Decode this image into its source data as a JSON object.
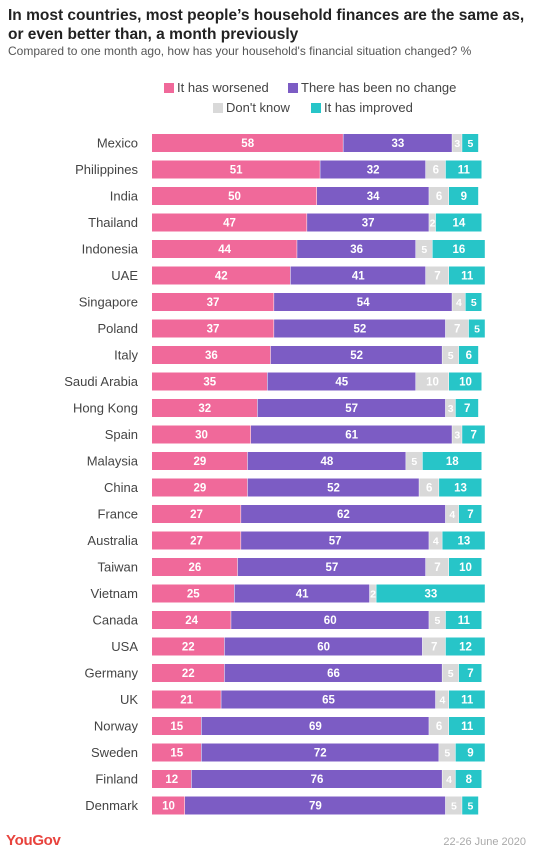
{
  "header": {
    "title": "In most countries, most people’s household finances are the same as, or even better than, a month previously",
    "subtitle": "Compared to one month ago, how has your household's financial situation changed? %"
  },
  "legend": {
    "items": [
      {
        "label": "It has worsened",
        "color": "#f0699a",
        "icon": "pink-square-icon"
      },
      {
        "label": "There has been no change",
        "color": "#7c5cc4",
        "icon": "purple-square-icon"
      },
      {
        "label": "Don't know",
        "color": "#d9d9d9",
        "icon": "grey-square-icon"
      },
      {
        "label": "It has improved",
        "color": "#27c5c8",
        "icon": "teal-square-icon"
      }
    ]
  },
  "chart_data": {
    "type": "bar",
    "orientation": "horizontal",
    "stacked": true,
    "categories": [
      "Mexico",
      "Philippines",
      "India",
      "Thailand",
      "Indonesia",
      "UAE",
      "Singapore",
      "Poland",
      "Italy",
      "Saudi Arabia",
      "Hong Kong",
      "Spain",
      "Malaysia",
      "China",
      "France",
      "Australia",
      "Taiwan",
      "Vietnam",
      "Canada",
      "USA",
      "Germany",
      "UK",
      "Norway",
      "Sweden",
      "Finland",
      "Denmark"
    ],
    "series": [
      {
        "name": "It has worsened",
        "color": "#f0699a",
        "values": [
          58,
          51,
          50,
          47,
          44,
          42,
          37,
          37,
          36,
          35,
          32,
          30,
          29,
          29,
          27,
          27,
          26,
          25,
          24,
          22,
          22,
          21,
          15,
          15,
          12,
          10
        ]
      },
      {
        "name": "There has been no change",
        "color": "#7c5cc4",
        "values": [
          33,
          32,
          34,
          37,
          36,
          41,
          54,
          52,
          52,
          45,
          57,
          61,
          48,
          52,
          62,
          57,
          57,
          41,
          60,
          60,
          66,
          65,
          69,
          72,
          76,
          79
        ]
      },
      {
        "name": "Don't know",
        "color": "#d9d9d9",
        "values": [
          3,
          6,
          6,
          2,
          5,
          7,
          4,
          7,
          5,
          10,
          3,
          3,
          5,
          6,
          4,
          4,
          7,
          2,
          5,
          7,
          5,
          4,
          6,
          5,
          4,
          5
        ]
      },
      {
        "name": "It has improved",
        "color": "#27c5c8",
        "values": [
          5,
          11,
          9,
          14,
          16,
          11,
          5,
          5,
          6,
          10,
          7,
          7,
          18,
          13,
          7,
          13,
          10,
          33,
          11,
          12,
          7,
          11,
          11,
          9,
          8,
          5
        ]
      }
    ],
    "xlim": [
      0,
      100
    ],
    "legend_position": "top",
    "grid": false
  },
  "footer": {
    "brand": "YouGov",
    "date": "22-26 June 2020"
  }
}
